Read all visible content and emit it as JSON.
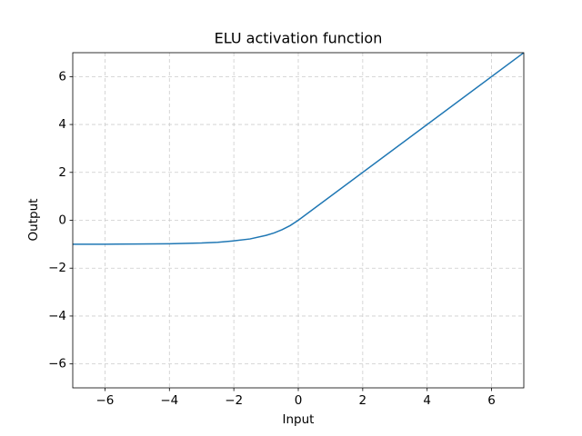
{
  "chart_data": {
    "type": "line",
    "title": "ELU activation function",
    "x_label": "Input",
    "y_label": "Output",
    "x": [
      -7,
      -6,
      -5,
      -4,
      -3,
      -2.5,
      -2,
      -1.5,
      -1,
      -0.75,
      -0.5,
      -0.25,
      0,
      7
    ],
    "series": [
      {
        "color": "#1f77b4",
        "values": [
          -1.0,
          -1.0,
          -0.99,
          -0.98,
          -0.95,
          -0.92,
          -0.86,
          -0.78,
          -0.63,
          -0.53,
          -0.39,
          -0.22,
          0,
          7
        ]
      }
    ],
    "xlim": [
      -7,
      7
    ],
    "ylim": [
      -7,
      7
    ],
    "xticks": [
      {
        "value": -6,
        "label": "−6"
      },
      {
        "value": -4,
        "label": "−4"
      },
      {
        "value": -2,
        "label": "−2"
      },
      0,
      2,
      4,
      6
    ],
    "yticks": [
      {
        "value": -6,
        "label": "−6"
      },
      {
        "value": -4,
        "label": "−4"
      },
      {
        "value": -2,
        "label": "−2"
      },
      0,
      2,
      4,
      6
    ],
    "grid": true
  }
}
